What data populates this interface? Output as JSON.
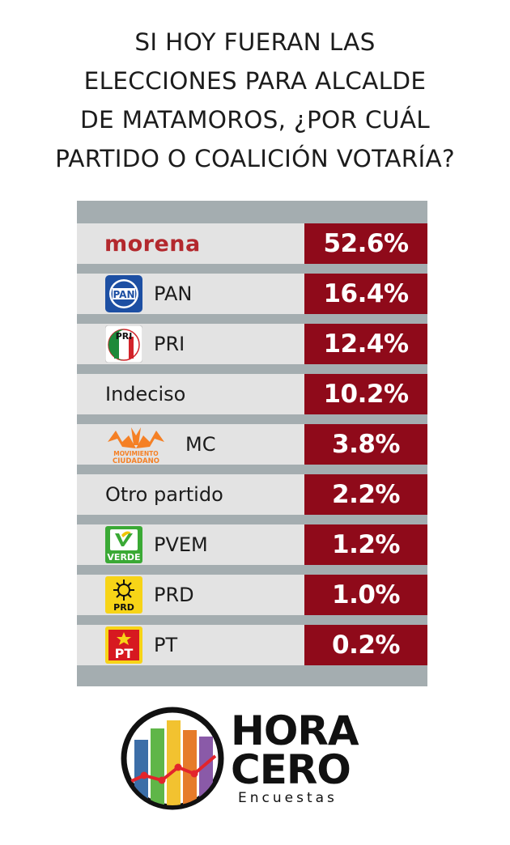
{
  "title_lines": [
    "SI HOY FUERAN LAS",
    "ELECCIONES PARA ALCALDE",
    "DE MATAMOROS, ¿POR CUÁL",
    "PARTIDO O COALICIÓN VOTARÍA?"
  ],
  "chart_data": {
    "type": "table",
    "title": "SI HOY FUERAN LAS ELECCIONES PARA ALCALDE DE MATAMOROS, ¿POR CUÁL PARTIDO O COALICIÓN VOTARÍA?",
    "rows": [
      {
        "party": "morena",
        "value": 52.6,
        "display": "52.6%",
        "logo": "morena-wordmark"
      },
      {
        "party": "PAN",
        "value": 16.4,
        "display": "16.4%",
        "logo": "pan-logo-icon"
      },
      {
        "party": "PRI",
        "value": 12.4,
        "display": "12.4%",
        "logo": "pri-logo-icon"
      },
      {
        "party": "Indeciso",
        "value": 10.2,
        "display": "10.2%",
        "logo": null
      },
      {
        "party": "MC",
        "value": 3.8,
        "display": "3.8%",
        "logo": "movimiento-ciudadano-logo-icon",
        "logo_text": [
          "MOVIMIENTO",
          "CIUDADANO"
        ]
      },
      {
        "party": "Otro partido",
        "value": 2.2,
        "display": "2.2%",
        "logo": null
      },
      {
        "party": "PVEM",
        "value": 1.2,
        "display": "1.2%",
        "logo": "pvem-logo-icon",
        "logo_text": [
          "VERDE"
        ]
      },
      {
        "party": "PRD",
        "value": 1.0,
        "display": "1.0%",
        "logo": "prd-logo-icon",
        "logo_text": [
          "PRD"
        ]
      },
      {
        "party": "PT",
        "value": 0.2,
        "display": "0.2%",
        "logo": "pt-logo-icon",
        "logo_text": [
          "PT"
        ]
      }
    ]
  },
  "colors": {
    "value_cell": "#8f0a1a",
    "label_cell": "#e3e3e3",
    "table_bg": "#a4adb0",
    "morena": "#b3282d",
    "pan": "#1d4fa3",
    "pri_green": "#1e8a3a",
    "pri_red": "#d2232a",
    "mc": "#f58025",
    "pvem": "#3aa935",
    "prd": "#f7d417",
    "pt": "#d71920"
  },
  "brand": {
    "line1": "HORA",
    "line2": "CERO",
    "line3": "Encuestas"
  }
}
